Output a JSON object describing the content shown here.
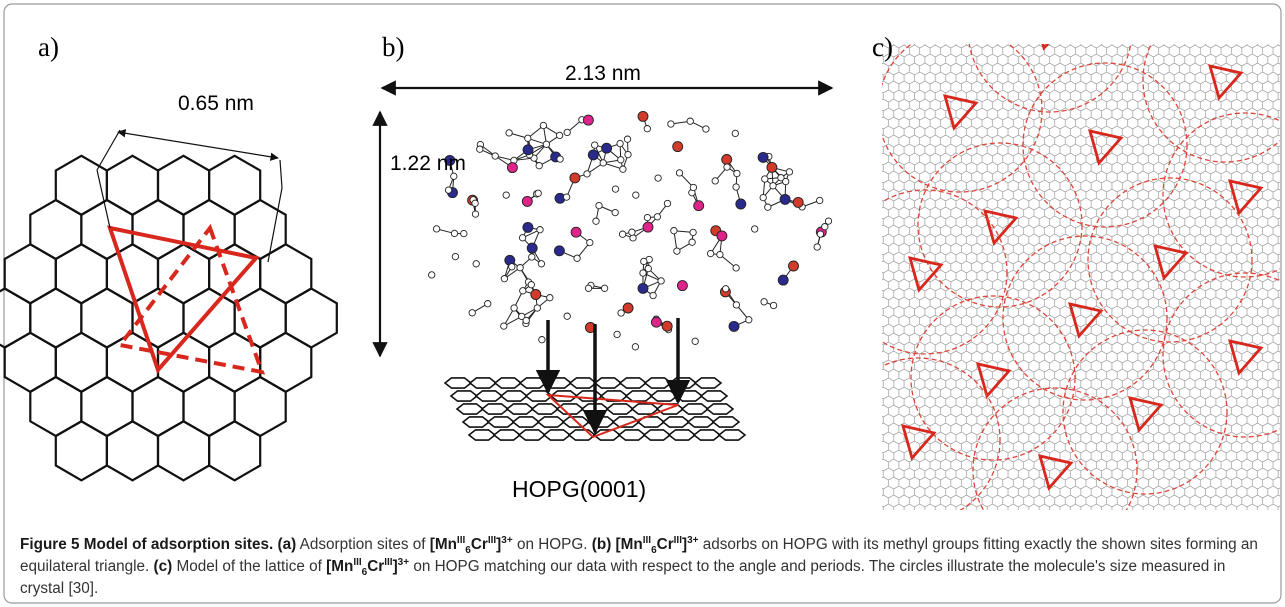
{
  "panels": {
    "a": {
      "label": "a)",
      "measure": "0.65 nm"
    },
    "b": {
      "label": "b)",
      "width": "2.13 nm",
      "height": "1.22 nm",
      "substrate": "HOPG(0001)"
    },
    "c": {
      "label": "c)"
    }
  },
  "caption": [
    "Figure 5 Model of adsorption sites.",
    "(a)",
    "Adsorption sites of",
    "[Mn",
    "III",
    "6",
    "Cr",
    "III",
    "]",
    "3+",
    "on HOPG.",
    "(b)",
    "[Mn",
    "III",
    "6",
    "Cr",
    "III",
    "]",
    "3+",
    "adsorbs on HOPG with its methyl groups fitting exactly the shown sites forming an equilateral triangle.",
    "(c)",
    "Model of the lattice of",
    "[Mn",
    "III",
    "6",
    "Cr",
    "III",
    "]",
    "3+",
    "on HOPG matching our data with respect to the angle and periods. The circles illustrate the molecule's size measured in crystal [30]."
  ]
}
